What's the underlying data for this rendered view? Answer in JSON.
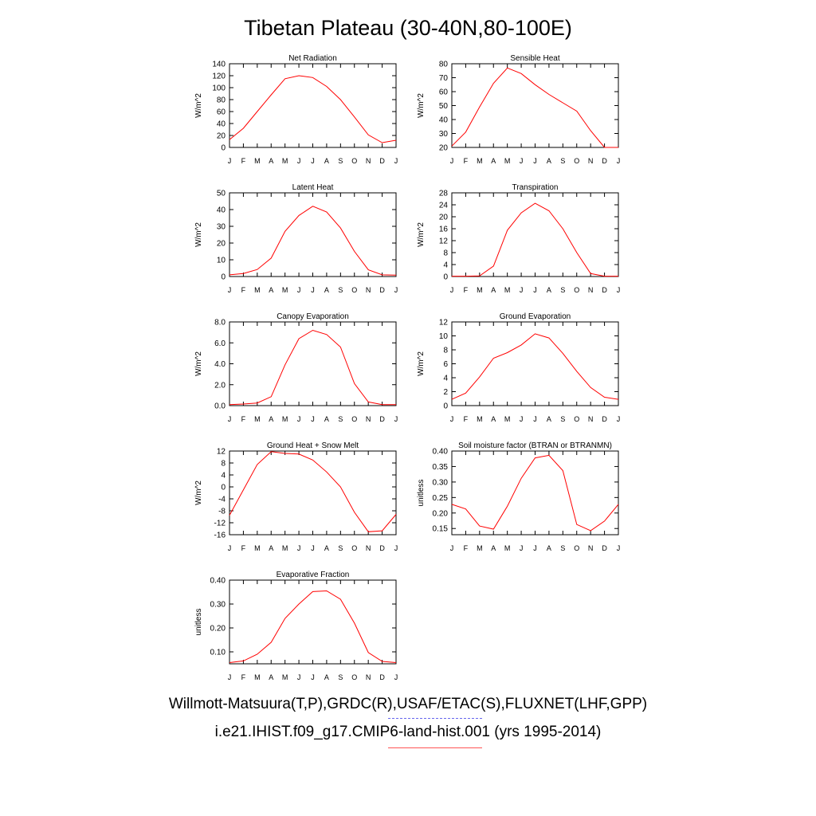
{
  "title": "Tibetan Plateau (30-40N,80-100E)",
  "footer": {
    "obs_sources": "Willmott-Matsuura(T,P),GRDC(R),USAF/ETAC(S),FLUXNET(LHF,GPP)",
    "case_label": "i.e21.IHIST.f09_g17.CMIP6-land-hist.001 (yrs 1995-2014)"
  },
  "colors": {
    "model_line": "#ff0000",
    "obs_line": "#6666ee",
    "case_line": "#ff5555"
  },
  "chart_data": [
    {
      "type": "line",
      "title": "Net Radiation",
      "ylabel": "W/m^2",
      "categories": [
        "J",
        "F",
        "M",
        "A",
        "M",
        "J",
        "J",
        "A",
        "S",
        "O",
        "N",
        "D",
        "J"
      ],
      "ylim": [
        0,
        140
      ],
      "yticks": [
        "0",
        "20",
        "40",
        "60",
        "80",
        "100",
        "120",
        "140"
      ],
      "values": [
        13,
        32,
        60,
        88,
        115,
        120,
        117,
        102,
        80,
        51,
        21,
        8,
        12
      ]
    },
    {
      "type": "line",
      "title": "Sensible Heat",
      "ylabel": "W/m^2",
      "categories": [
        "J",
        "F",
        "M",
        "A",
        "M",
        "J",
        "J",
        "A",
        "S",
        "O",
        "N",
        "D",
        "J"
      ],
      "ylim": [
        20,
        80
      ],
      "yticks": [
        "20",
        "30",
        "40",
        "50",
        "60",
        "70",
        "80"
      ],
      "values": [
        21,
        31,
        49,
        66,
        77,
        73,
        65,
        58,
        52,
        46,
        32,
        20,
        20
      ]
    },
    {
      "type": "line",
      "title": "Latent Heat",
      "ylabel": "W/m^2",
      "categories": [
        "J",
        "F",
        "M",
        "A",
        "M",
        "J",
        "J",
        "A",
        "S",
        "O",
        "N",
        "D",
        "J"
      ],
      "ylim": [
        0,
        50
      ],
      "yticks": [
        "0",
        "10",
        "20",
        "30",
        "40",
        "50"
      ],
      "values": [
        1,
        1.8,
        4.2,
        11,
        27,
        36.5,
        42,
        38.5,
        29,
        15,
        4,
        1,
        0.8
      ]
    },
    {
      "type": "line",
      "title": "Transpiration",
      "ylabel": "W/m^2",
      "categories": [
        "J",
        "F",
        "M",
        "A",
        "M",
        "J",
        "J",
        "A",
        "S",
        "O",
        "N",
        "D",
        "J"
      ],
      "ylim": [
        0,
        28
      ],
      "yticks": [
        "0",
        "4",
        "8",
        "12",
        "16",
        "20",
        "24",
        "28"
      ],
      "values": [
        0.1,
        0.1,
        0.2,
        3.5,
        15.5,
        21.3,
        24.5,
        22,
        16,
        8,
        1,
        0.1,
        0.1
      ]
    },
    {
      "type": "line",
      "title": "Canopy Evaporation",
      "ylabel": "W/m^2",
      "categories": [
        "J",
        "F",
        "M",
        "A",
        "M",
        "J",
        "J",
        "A",
        "S",
        "O",
        "N",
        "D",
        "J"
      ],
      "ylim": [
        0,
        8
      ],
      "yticks": [
        "0.0",
        "2.0",
        "4.0",
        "6.0",
        "8.0"
      ],
      "values": [
        0.1,
        0.15,
        0.25,
        0.85,
        3.9,
        6.4,
        7.2,
        6.8,
        5.6,
        2.1,
        0.35,
        0.1,
        0.1
      ]
    },
    {
      "type": "line",
      "title": "Ground Evaporation",
      "ylabel": "W/m^2",
      "categories": [
        "J",
        "F",
        "M",
        "A",
        "M",
        "J",
        "J",
        "A",
        "S",
        "O",
        "N",
        "D",
        "J"
      ],
      "ylim": [
        0,
        12
      ],
      "yticks": [
        "0",
        "2",
        "4",
        "6",
        "8",
        "10",
        "12"
      ],
      "values": [
        0.9,
        1.8,
        4.1,
        6.8,
        7.6,
        8.7,
        10.3,
        9.7,
        7.5,
        4.9,
        2.6,
        1.2,
        0.9
      ]
    },
    {
      "type": "line",
      "title": "Ground Heat + Snow Melt",
      "ylabel": "W/m^2",
      "categories": [
        "J",
        "F",
        "M",
        "A",
        "M",
        "J",
        "J",
        "A",
        "S",
        "O",
        "N",
        "D",
        "J"
      ],
      "ylim": [
        -16,
        12
      ],
      "yticks": [
        "-16",
        "-12",
        "-8",
        "-4",
        "0",
        "4",
        "8",
        "12"
      ],
      "values": [
        -9.5,
        -1,
        7.5,
        11.8,
        11.2,
        11,
        9,
        5,
        0,
        -8.5,
        -15,
        -14.7,
        -9.2
      ]
    },
    {
      "type": "line",
      "title": "Soil moisture factor (BTRAN or BTRANMN)",
      "ylabel": "unitless",
      "categories": [
        "J",
        "F",
        "M",
        "A",
        "M",
        "J",
        "J",
        "A",
        "S",
        "O",
        "N",
        "D",
        "J"
      ],
      "ylim": [
        0.13,
        0.4
      ],
      "yticks": [
        "0.15",
        "0.20",
        "0.25",
        "0.30",
        "0.35",
        "0.40"
      ],
      "values": [
        0.228,
        0.213,
        0.158,
        0.148,
        0.222,
        0.312,
        0.378,
        0.386,
        0.337,
        0.163,
        0.143,
        0.174,
        0.228
      ]
    },
    {
      "type": "line",
      "title": "Evaporative Fraction",
      "ylabel": "unitless",
      "categories": [
        "J",
        "F",
        "M",
        "A",
        "M",
        "J",
        "J",
        "A",
        "S",
        "O",
        "N",
        "D",
        "J"
      ],
      "ylim": [
        0.05,
        0.4
      ],
      "yticks": [
        "0.10",
        "0.20",
        "0.30",
        "0.40"
      ],
      "values": [
        0.055,
        0.062,
        0.09,
        0.14,
        0.24,
        0.3,
        0.352,
        0.355,
        0.32,
        0.22,
        0.097,
        0.06,
        0.055
      ]
    }
  ]
}
